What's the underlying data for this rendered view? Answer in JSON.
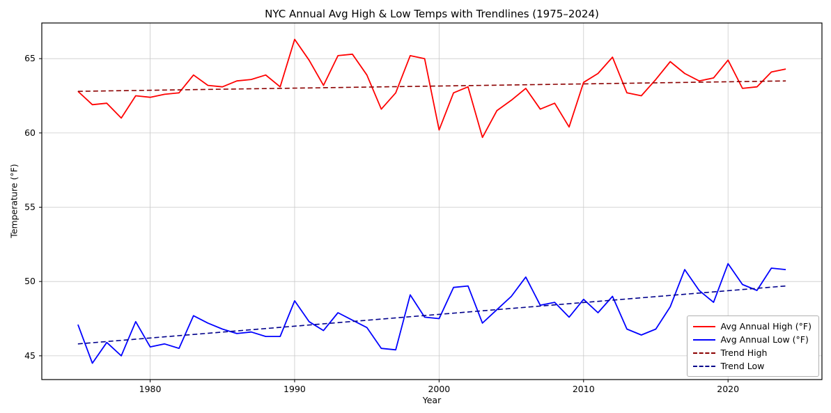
{
  "figure": {
    "background": "#ffffff"
  },
  "chart_data": {
    "type": "line",
    "title": "NYC Annual Avg High & Low Temps with Trendlines (1975–2024)",
    "xlabel": "Year",
    "ylabel": "Temperature (°F)",
    "grid": true,
    "legend_position": "lower right",
    "xlim": [
      1972.5,
      2026.5
    ],
    "ylim": [
      43.4,
      67.4
    ],
    "xticks": [
      1980,
      1990,
      2000,
      2010,
      2020
    ],
    "yticks": [
      45,
      50,
      55,
      60,
      65
    ],
    "x": [
      1975,
      1976,
      1977,
      1978,
      1979,
      1980,
      1981,
      1982,
      1983,
      1984,
      1985,
      1986,
      1987,
      1988,
      1989,
      1990,
      1991,
      1992,
      1993,
      1994,
      1995,
      1996,
      1997,
      1998,
      1999,
      2000,
      2001,
      2002,
      2003,
      2004,
      2005,
      2006,
      2007,
      2008,
      2009,
      2010,
      2011,
      2012,
      2013,
      2014,
      2015,
      2016,
      2017,
      2018,
      2019,
      2020,
      2021,
      2022,
      2023,
      2024
    ],
    "series": [
      {
        "name": "Avg Annual High (°F)",
        "color": "#ff0000",
        "style": "solid",
        "values": [
          62.8,
          61.9,
          62.0,
          61.0,
          62.5,
          62.4,
          62.6,
          62.7,
          63.9,
          63.2,
          63.1,
          63.5,
          63.6,
          63.9,
          63.1,
          66.3,
          64.9,
          63.2,
          65.2,
          65.3,
          63.9,
          61.6,
          62.7,
          65.2,
          65.0,
          60.2,
          62.7,
          63.1,
          59.7,
          61.5,
          62.2,
          63.0,
          61.6,
          62.0,
          60.4,
          63.4,
          64.0,
          65.1,
          62.7,
          62.5,
          63.6,
          64.8,
          64.0,
          63.5,
          63.7,
          64.9,
          63.0,
          63.1,
          64.1,
          64.3
        ]
      },
      {
        "name": "Avg Annual Low (°F)",
        "color": "#0000ff",
        "style": "solid",
        "values": [
          47.1,
          44.5,
          45.9,
          45.0,
          47.3,
          45.6,
          45.8,
          45.5,
          47.7,
          47.2,
          46.8,
          46.5,
          46.6,
          46.3,
          46.3,
          48.7,
          47.3,
          46.7,
          47.9,
          47.4,
          46.9,
          45.5,
          45.4,
          49.1,
          47.6,
          47.5,
          49.6,
          49.7,
          47.2,
          48.1,
          49.0,
          50.3,
          48.4,
          48.6,
          47.6,
          48.8,
          47.9,
          49.0,
          46.8,
          46.4,
          46.8,
          48.3,
          50.8,
          49.4,
          48.6,
          51.2,
          49.8,
          49.4,
          50.9,
          50.8
        ]
      },
      {
        "name": "Trend High",
        "color": "#8b0000",
        "style": "dashed",
        "trend_x": [
          1975,
          2024
        ],
        "trend_y": [
          62.8,
          63.5
        ]
      },
      {
        "name": "Trend Low",
        "color": "#00008b",
        "style": "dashed",
        "trend_x": [
          1975,
          2024
        ],
        "trend_y": [
          45.8,
          49.7
        ]
      }
    ],
    "colors": {
      "grid": "#c9c9c9",
      "axis": "#000000",
      "tick_text": "#000000"
    }
  }
}
